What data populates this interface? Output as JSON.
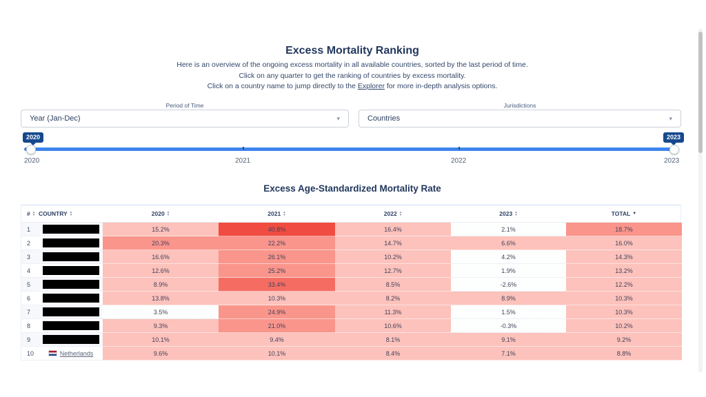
{
  "header": {
    "title": "Excess Mortality Ranking",
    "line1": "Here is an overview of the ongoing excess mortality in all available countries, sorted by the last period of time.",
    "line2": "Click on any quarter to get the ranking of countries by excess mortality.",
    "line3_prefix": "Click on a country name to jump directly to the ",
    "line3_link": "Explorer",
    "line3_suffix": " for more in-depth analysis options."
  },
  "filters": {
    "period_label": "Period of Time",
    "period_value": "Year (Jan-Dec)",
    "jurisdictions_label": "Jurisdictions",
    "jurisdictions_value": "Countries"
  },
  "slider": {
    "start_value": "2020",
    "end_value": "2023",
    "tick_labels": [
      "2020",
      "2021",
      "2022",
      "2023"
    ]
  },
  "table": {
    "title": "Excess Age-Standardized Mortality Rate",
    "columns": [
      "#",
      "COUNTRY",
      "2020",
      "2021",
      "2022",
      "2023",
      "TOTAL"
    ],
    "sorted_column": "TOTAL",
    "heat_colors": {
      "strong": "#f04c41",
      "hot": "#f56d62",
      "medium": "#f9958b",
      "light": "#fcc2bb",
      "white": "#fdfffe"
    },
    "rows": [
      {
        "rank": "1",
        "country": "",
        "redacted": true,
        "values": [
          "15.2%",
          "40.8%",
          "16.4%",
          "2.1%",
          "18.7%"
        ],
        "heat": [
          "light",
          "strong",
          "light",
          "white",
          "medium"
        ]
      },
      {
        "rank": "2",
        "country": "",
        "redacted": true,
        "values": [
          "20.3%",
          "22.2%",
          "14.7%",
          "6.6%",
          "16.0%"
        ],
        "heat": [
          "medium",
          "medium",
          "light",
          "light",
          "light"
        ]
      },
      {
        "rank": "3",
        "country": "",
        "redacted": true,
        "values": [
          "16.6%",
          "26.1%",
          "10.2%",
          "4.2%",
          "14.3%"
        ],
        "heat": [
          "light",
          "medium",
          "light",
          "white",
          "light"
        ]
      },
      {
        "rank": "4",
        "country": "",
        "redacted": true,
        "values": [
          "12.6%",
          "25.2%",
          "12.7%",
          "1.9%",
          "13.2%"
        ],
        "heat": [
          "light",
          "medium",
          "light",
          "white",
          "light"
        ]
      },
      {
        "rank": "5",
        "country": "",
        "redacted": true,
        "values": [
          "8.9%",
          "33.4%",
          "8.5%",
          "-2.6%",
          "12.2%"
        ],
        "heat": [
          "light",
          "hot",
          "light",
          "white",
          "light"
        ]
      },
      {
        "rank": "6",
        "country": "",
        "redacted": true,
        "values": [
          "13.8%",
          "10.3%",
          "8.2%",
          "8.9%",
          "10.3%"
        ],
        "heat": [
          "light",
          "light",
          "light",
          "light",
          "light"
        ]
      },
      {
        "rank": "7",
        "country": "",
        "redacted": true,
        "values": [
          "3.5%",
          "24.9%",
          "11.3%",
          "1.5%",
          "10.3%"
        ],
        "heat": [
          "white",
          "medium",
          "light",
          "white",
          "light"
        ]
      },
      {
        "rank": "8",
        "country": "",
        "redacted": true,
        "values": [
          "9.3%",
          "21.0%",
          "10.6%",
          "-0.3%",
          "10.2%"
        ],
        "heat": [
          "light",
          "medium",
          "light",
          "white",
          "light"
        ]
      },
      {
        "rank": "9",
        "country": "",
        "redacted": true,
        "values": [
          "10.1%",
          "9.4%",
          "8.1%",
          "9.1%",
          "9.2%"
        ],
        "heat": [
          "light",
          "light",
          "light",
          "light",
          "light"
        ]
      },
      {
        "rank": "10",
        "country": "Netherlands",
        "redacted": false,
        "values": [
          "9.6%",
          "10.1%",
          "8.4%",
          "7.1%",
          "8.8%"
        ],
        "heat": [
          "light",
          "light",
          "light",
          "light",
          "light"
        ]
      }
    ]
  },
  "icons": {
    "dropdown_caret": "▾",
    "sort_up": "▲",
    "sort_down": "▼"
  },
  "colors": {
    "accent_blue": "#3d85ee",
    "badge_navy": "#16498e",
    "heading_navy": "#21375c"
  }
}
